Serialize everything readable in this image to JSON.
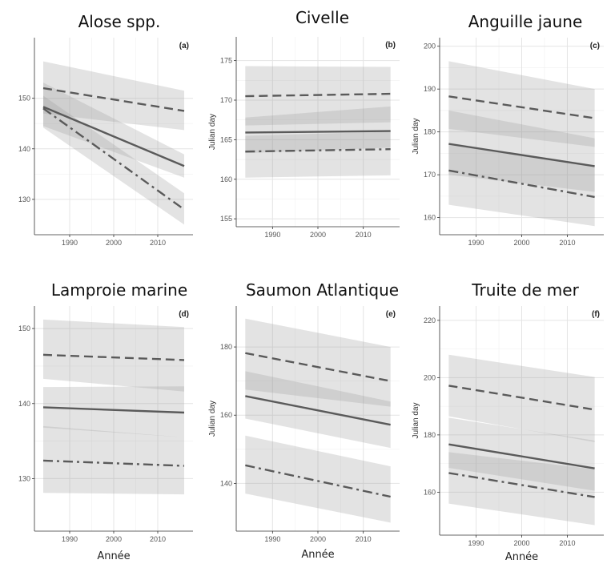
{
  "chart_data": [
    {
      "type": "line",
      "panel": "(a)",
      "title": "Alose spp.",
      "xlabel": "",
      "ylabel": "",
      "xlim": [
        1982,
        2018
      ],
      "ylim": [
        123,
        162
      ],
      "xticks": [
        1990,
        2000,
        2010
      ],
      "yticks": [
        130,
        140,
        150
      ],
      "xtick_labels": [
        "1990",
        "2000",
        "2010"
      ],
      "ytick_labels": [
        "130",
        "140",
        "150"
      ],
      "grid": true,
      "series": [
        {
          "style": "dashed",
          "x": [
            1984,
            2016
          ],
          "y": [
            152,
            147.5
          ],
          "ribbon_lo": [
            147,
            143.7
          ],
          "ribbon_hi": [
            157.3,
            151.5
          ]
        },
        {
          "style": "solid",
          "x": [
            1984,
            2016
          ],
          "y": [
            148.3,
            136.6
          ],
          "ribbon_lo": [
            144.5,
            134.3
          ],
          "ribbon_hi": [
            153.1,
            138.9
          ]
        },
        {
          "style": "dashdot",
          "x": [
            1984,
            2016
          ],
          "y": [
            148,
            128
          ],
          "ribbon_lo": [
            144.2,
            125
          ],
          "ribbon_hi": [
            150.5,
            131.2
          ]
        }
      ]
    },
    {
      "type": "line",
      "panel": "(b)",
      "title": "Civelle",
      "xlabel": "",
      "ylabel": "Julian day",
      "xlim": [
        1982,
        2018
      ],
      "ylim": [
        154,
        178
      ],
      "xticks": [
        1990,
        2000,
        2010
      ],
      "yticks": [
        155,
        160,
        165,
        170,
        175
      ],
      "xtick_labels": [
        "1990",
        "2000",
        "2010"
      ],
      "ytick_labels": [
        "155",
        "160",
        "165",
        "170",
        "175"
      ],
      "grid": true,
      "series": [
        {
          "style": "dashed",
          "x": [
            1984,
            2016
          ],
          "y": [
            170.5,
            170.8
          ],
          "ribbon_lo": [
            166.8,
            167.2
          ],
          "ribbon_hi": [
            174.3,
            174.2
          ]
        },
        {
          "style": "solid",
          "x": [
            1984,
            2016
          ],
          "y": [
            165.9,
            166.1
          ],
          "ribbon_lo": [
            163.3,
            164
          ],
          "ribbon_hi": [
            167.8,
            169.2
          ]
        },
        {
          "style": "dashdot",
          "x": [
            1984,
            2016
          ],
          "y": [
            163.5,
            163.8
          ],
          "ribbon_lo": [
            160.2,
            160.5
          ],
          "ribbon_hi": [
            165.5,
            166
          ]
        }
      ]
    },
    {
      "type": "line",
      "panel": "(c)",
      "title": "Anguille jaune",
      "xlabel": "",
      "ylabel": "Julian day",
      "xlim": [
        1982,
        2018
      ],
      "ylim": [
        156,
        202
      ],
      "xticks": [
        1990,
        2000,
        2010
      ],
      "yticks": [
        160,
        170,
        180,
        190,
        200
      ],
      "xtick_labels": [
        "1990",
        "2000",
        "2010"
      ],
      "ytick_labels": [
        "160",
        "170",
        "180",
        "190",
        "200"
      ],
      "grid": true,
      "series": [
        {
          "style": "dashed",
          "x": [
            1984,
            2016
          ],
          "y": [
            188.3,
            183.2
          ],
          "ribbon_lo": [
            180.7,
            176.5
          ],
          "ribbon_hi": [
            196.5,
            190
          ]
        },
        {
          "style": "solid",
          "x": [
            1984,
            2016
          ],
          "y": [
            177.2,
            172
          ],
          "ribbon_lo": [
            170,
            166
          ],
          "ribbon_hi": [
            185,
            178.5
          ]
        },
        {
          "style": "dashdot",
          "x": [
            1984,
            2016
          ],
          "y": [
            171,
            164.8
          ],
          "ribbon_lo": [
            163,
            158
          ],
          "ribbon_hi": [
            177.5,
            172
          ]
        }
      ]
    },
    {
      "type": "line",
      "panel": "(d)",
      "title": "Lamproie marine",
      "xlabel": "Année",
      "ylabel": "",
      "xlim": [
        1982,
        2018
      ],
      "ylim": [
        123,
        153
      ],
      "xticks": [
        1990,
        2000,
        2010
      ],
      "yticks": [
        130,
        140,
        150
      ],
      "xtick_labels": [
        "1990",
        "2000",
        "2010"
      ],
      "ytick_labels": [
        "130",
        "140",
        "150"
      ],
      "grid": true,
      "series": [
        {
          "style": "dashed",
          "x": [
            1984,
            2016
          ],
          "y": [
            146.5,
            145.8
          ],
          "ribbon_lo": [
            143.3,
            141.6
          ],
          "ribbon_hi": [
            151.2,
            150.2
          ]
        },
        {
          "style": "solid",
          "x": [
            1984,
            2016
          ],
          "y": [
            139.5,
            138.8
          ],
          "ribbon_lo": [
            136.8,
            135.5
          ],
          "ribbon_hi": [
            142.2,
            142.3
          ]
        },
        {
          "style": "dashdot",
          "x": [
            1984,
            2016
          ],
          "y": [
            132.4,
            131.7
          ],
          "ribbon_lo": [
            128.1,
            127.9
          ],
          "ribbon_hi": [
            137,
            135.5
          ]
        }
      ]
    },
    {
      "type": "line",
      "panel": "(e)",
      "title": "Saumon Atlantique",
      "xlabel": "Année",
      "ylabel": "Julian day",
      "xlim": [
        1982,
        2018
      ],
      "ylim": [
        126,
        192
      ],
      "xticks": [
        1990,
        2000,
        2010
      ],
      "yticks": [
        140,
        160,
        180
      ],
      "xtick_labels": [
        "1990",
        "2000",
        "2010"
      ],
      "ytick_labels": [
        "140",
        "160",
        "180"
      ],
      "grid": true,
      "series": [
        {
          "style": "dashed",
          "x": [
            1984,
            2016
          ],
          "y": [
            178.2,
            170
          ],
          "ribbon_lo": [
            167.5,
            162.5
          ],
          "ribbon_hi": [
            188.3,
            180
          ]
        },
        {
          "style": "solid",
          "x": [
            1984,
            2016
          ],
          "y": [
            165.6,
            157.2
          ],
          "ribbon_lo": [
            159,
            150.4
          ],
          "ribbon_hi": [
            172.9,
            164
          ]
        },
        {
          "style": "dashdot",
          "x": [
            1984,
            2016
          ],
          "y": [
            145.3,
            136.1
          ],
          "ribbon_lo": [
            137,
            128.5
          ],
          "ribbon_hi": [
            154,
            145
          ]
        }
      ]
    },
    {
      "type": "line",
      "panel": "(f)",
      "title": "Truite de mer",
      "xlabel": "Année",
      "ylabel": "Julian day",
      "xlim": [
        1982,
        2018
      ],
      "ylim": [
        145,
        225
      ],
      "xticks": [
        1990,
        2000,
        2010
      ],
      "yticks": [
        160,
        180,
        200,
        220
      ],
      "xtick_labels": [
        "1990",
        "2000",
        "2010"
      ],
      "ytick_labels": [
        "160",
        "180",
        "200",
        "220"
      ],
      "grid": true,
      "series": [
        {
          "style": "dashed",
          "x": [
            1984,
            2016
          ],
          "y": [
            197.2,
            188.8
          ],
          "ribbon_lo": [
            186.5,
            177.5
          ],
          "ribbon_hi": [
            208,
            200.2
          ]
        },
        {
          "style": "solid",
          "x": [
            1984,
            2016
          ],
          "y": [
            176.7,
            168.3
          ],
          "ribbon_lo": [
            168.5,
            160.5
          ],
          "ribbon_hi": [
            186,
            178
          ]
        },
        {
          "style": "dashdot",
          "x": [
            1984,
            2016
          ],
          "y": [
            166.7,
            158.3
          ],
          "ribbon_lo": [
            156,
            148.5
          ],
          "ribbon_hi": [
            174,
            168
          ]
        }
      ]
    }
  ]
}
